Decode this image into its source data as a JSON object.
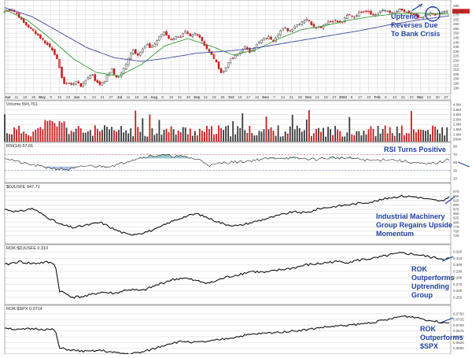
{
  "colors": {
    "up": "#3a3a3a",
    "down": "#cc1a1a",
    "ma_short": "#2c9a2c",
    "ma_long": "#3b3f9c",
    "line": "#111111",
    "annotation": "#1f3fa3",
    "rsi_fill": "#4a9a9a",
    "rsi_fill_low": "#6a8cc8"
  },
  "chart_data": [
    {
      "type": "candlestick",
      "panel": "price",
      "x_tick_labels": [
        "Apr",
        "11",
        "18",
        "25",
        "May",
        "9",
        "16",
        "23",
        "Jun",
        "6",
        "13",
        "21",
        "27",
        "Jul",
        "11",
        "18",
        "25",
        "Aug",
        "8",
        "15",
        "22",
        "29",
        "Sep",
        "12",
        "19",
        "26",
        "Oct",
        "10",
        "17",
        "24",
        "Nov",
        "7",
        "14",
        "21",
        "28",
        "Dec",
        "12",
        "19",
        "27",
        "2023",
        "9",
        "17",
        "23",
        "Feb",
        "6",
        "13",
        "21",
        "27",
        "Mar",
        "13",
        "20",
        "27"
      ],
      "y_tick_labels": [
        "280",
        "275",
        "270",
        "265",
        "260",
        "255",
        "250",
        "245",
        "240",
        "235",
        "230",
        "225",
        "220",
        "215",
        "210",
        "205",
        "200",
        "195",
        "190"
      ],
      "ylim": [
        188,
        282
      ],
      "close_path": [
        [
          0,
          274
        ],
        [
          8,
          276
        ],
        [
          14,
          270
        ],
        [
          20,
          262
        ],
        [
          28,
          255
        ],
        [
          34,
          250
        ],
        [
          40,
          244
        ],
        [
          46,
          238
        ],
        [
          52,
          232
        ],
        [
          56,
          225
        ],
        [
          58,
          218
        ],
        [
          60,
          210
        ],
        [
          63,
          200
        ],
        [
          66,
          192
        ],
        [
          70,
          196
        ],
        [
          74,
          193
        ],
        [
          79,
          198
        ],
        [
          84,
          191
        ],
        [
          90,
          201
        ],
        [
          96,
          205
        ],
        [
          100,
          196
        ],
        [
          104,
          194
        ],
        [
          110,
          199
        ],
        [
          113,
          206
        ],
        [
          117,
          210
        ],
        [
          120,
          204
        ],
        [
          124,
          201
        ],
        [
          129,
          209
        ],
        [
          133,
          216
        ],
        [
          136,
          226
        ],
        [
          140,
          232
        ],
        [
          145,
          226
        ],
        [
          149,
          230
        ],
        [
          155,
          238
        ],
        [
          158,
          234
        ],
        [
          163,
          237
        ],
        [
          170,
          247
        ],
        [
          174,
          252
        ],
        [
          179,
          245
        ],
        [
          182,
          242
        ],
        [
          187,
          247
        ],
        [
          192,
          244
        ],
        [
          197,
          252
        ],
        [
          202,
          246
        ],
        [
          209,
          250
        ],
        [
          214,
          245
        ],
        [
          219,
          236
        ],
        [
          224,
          229
        ],
        [
          229,
          222
        ],
        [
          234,
          212
        ],
        [
          237,
          206
        ],
        [
          241,
          210
        ],
        [
          245,
          220
        ],
        [
          250,
          223
        ],
        [
          257,
          229
        ],
        [
          262,
          235
        ],
        [
          268,
          229
        ],
        [
          274,
          236
        ],
        [
          282,
          243
        ],
        [
          288,
          246
        ],
        [
          294,
          242
        ],
        [
          301,
          252
        ],
        [
          306,
          256
        ],
        [
          311,
          252
        ],
        [
          318,
          258
        ],
        [
          324,
          262
        ],
        [
          330,
          266
        ],
        [
          337,
          258
        ],
        [
          345,
          256
        ],
        [
          352,
          262
        ],
        [
          360,
          264
        ],
        [
          368,
          261
        ],
        [
          375,
          270
        ],
        [
          382,
          268
        ],
        [
          390,
          274
        ],
        [
          396,
          275
        ],
        [
          404,
          269
        ],
        [
          410,
          274
        ],
        [
          418,
          275
        ],
        [
          425,
          271
        ],
        [
          432,
          276
        ],
        [
          440,
          272
        ],
        [
          448,
          270
        ],
        [
          454,
          265
        ],
        [
          458,
          268
        ],
        [
          466,
          272
        ],
        [
          472,
          270
        ],
        [
          480,
          274
        ],
        [
          486,
          273
        ]
      ],
      "ma_short": [
        [
          0,
          276
        ],
        [
          25,
          264
        ],
        [
          50,
          244
        ],
        [
          75,
          222
        ],
        [
          100,
          207
        ],
        [
          125,
          203
        ],
        [
          150,
          216
        ],
        [
          175,
          236
        ],
        [
          200,
          244
        ],
        [
          225,
          236
        ],
        [
          250,
          226
        ],
        [
          275,
          232
        ],
        [
          300,
          244
        ],
        [
          325,
          254
        ],
        [
          350,
          258
        ],
        [
          375,
          264
        ],
        [
          400,
          268
        ],
        [
          425,
          271
        ],
        [
          450,
          272
        ],
        [
          486,
          271
        ]
      ],
      "ma_long": [
        [
          0,
          278
        ],
        [
          30,
          268
        ],
        [
          60,
          251
        ],
        [
          90,
          234
        ],
        [
          120,
          223
        ],
        [
          150,
          219
        ],
        [
          180,
          223
        ],
        [
          210,
          228
        ],
        [
          240,
          230
        ],
        [
          270,
          233
        ],
        [
          300,
          238
        ],
        [
          330,
          243
        ],
        [
          360,
          248
        ],
        [
          390,
          253
        ],
        [
          420,
          259
        ],
        [
          450,
          264
        ],
        [
          486,
          269
        ]
      ],
      "volume_max": 4.0,
      "volume_ticks": [
        "4.0M",
        "3.5M",
        "3.0M",
        "2.5M",
        "2.0M",
        "1.5M",
        "1.0M",
        "500K"
      ],
      "last_close_label": "274.08"
    },
    {
      "type": "line",
      "panel": "rsi",
      "series_label": "RSI(14) 57.01",
      "ylim": [
        10,
        90
      ],
      "y_tick_labels": [
        "90",
        "70",
        "50",
        "30",
        "10"
      ],
      "values": [
        [
          0,
          62
        ],
        [
          20,
          48
        ],
        [
          40,
          40
        ],
        [
          55,
          35
        ],
        [
          70,
          32
        ],
        [
          90,
          42
        ],
        [
          110,
          40
        ],
        [
          125,
          45
        ],
        [
          140,
          58
        ],
        [
          155,
          65
        ],
        [
          170,
          68
        ],
        [
          185,
          66
        ],
        [
          200,
          63
        ],
        [
          215,
          55
        ],
        [
          225,
          42
        ],
        [
          240,
          50
        ],
        [
          260,
          52
        ],
        [
          280,
          58
        ],
        [
          300,
          62
        ],
        [
          320,
          60
        ],
        [
          340,
          58
        ],
        [
          360,
          62
        ],
        [
          380,
          60
        ],
        [
          400,
          55
        ],
        [
          420,
          58
        ],
        [
          440,
          52
        ],
        [
          460,
          45
        ],
        [
          475,
          50
        ],
        [
          486,
          57
        ]
      ]
    },
    {
      "type": "line",
      "panel": "dj_industrial_machinery",
      "series_label": "$DJUSFE 947.71",
      "ylim": [
        700,
        1000
      ],
      "y_tick_labels": [
        "975",
        "950",
        "925",
        "900",
        "875",
        "850",
        "825",
        "800",
        "775",
        "750",
        "725"
      ],
      "values": [
        [
          0,
          875
        ],
        [
          15,
          860
        ],
        [
          30,
          880
        ],
        [
          45,
          835
        ],
        [
          60,
          790
        ],
        [
          75,
          770
        ],
        [
          90,
          785
        ],
        [
          105,
          800
        ],
        [
          120,
          760
        ],
        [
          135,
          730
        ],
        [
          150,
          740
        ],
        [
          165,
          760
        ],
        [
          180,
          800
        ],
        [
          195,
          830
        ],
        [
          210,
          850
        ],
        [
          225,
          820
        ],
        [
          240,
          790
        ],
        [
          255,
          780
        ],
        [
          270,
          800
        ],
        [
          285,
          820
        ],
        [
          300,
          840
        ],
        [
          315,
          860
        ],
        [
          330,
          855
        ],
        [
          345,
          880
        ],
        [
          360,
          890
        ],
        [
          375,
          900
        ],
        [
          390,
          910
        ],
        [
          405,
          920
        ],
        [
          420,
          940
        ],
        [
          435,
          950
        ],
        [
          450,
          945
        ],
        [
          465,
          930
        ],
        [
          480,
          920
        ],
        [
          486,
          947
        ]
      ]
    },
    {
      "type": "line",
      "panel": "rok_vs_djusfe",
      "series_label": "ROK:$DJUSFE 0.310",
      "ylim": [
        0.245,
        0.325
      ],
      "y_tick_labels": [
        "0.320",
        "0.310",
        "0.300",
        "0.290",
        "0.280",
        "0.270",
        "0.260",
        "0.250"
      ],
      "values": [
        [
          0,
          0.3
        ],
        [
          15,
          0.305
        ],
        [
          30,
          0.302
        ],
        [
          45,
          0.304
        ],
        [
          55,
          0.302
        ],
        [
          60,
          0.26
        ],
        [
          75,
          0.25
        ],
        [
          90,
          0.252
        ],
        [
          105,
          0.258
        ],
        [
          120,
          0.256
        ],
        [
          135,
          0.262
        ],
        [
          150,
          0.26
        ],
        [
          165,
          0.268
        ],
        [
          180,
          0.276
        ],
        [
          195,
          0.28
        ],
        [
          210,
          0.275
        ],
        [
          225,
          0.272
        ],
        [
          240,
          0.28
        ],
        [
          255,
          0.285
        ],
        [
          270,
          0.29
        ],
        [
          285,
          0.288
        ],
        [
          300,
          0.292
        ],
        [
          315,
          0.295
        ],
        [
          330,
          0.3
        ],
        [
          345,
          0.302
        ],
        [
          360,
          0.305
        ],
        [
          375,
          0.304
        ],
        [
          390,
          0.308
        ],
        [
          405,
          0.31
        ],
        [
          420,
          0.315
        ],
        [
          435,
          0.318
        ],
        [
          450,
          0.316
        ],
        [
          465,
          0.312
        ],
        [
          480,
          0.309
        ],
        [
          486,
          0.31
        ]
      ]
    },
    {
      "type": "line",
      "panel": "rok_vs_spx",
      "series_label": "ROK:$SPX 0.0714",
      "ylim": [
        0.055,
        0.077
      ],
      "y_tick_labels": [
        "0.0750",
        "0.0725",
        "0.0700",
        "0.0675",
        "0.0650",
        "0.0625",
        "0.0600",
        "0.0575"
      ],
      "values": [
        [
          0,
          0.069
        ],
        [
          15,
          0.068
        ],
        [
          30,
          0.0685
        ],
        [
          45,
          0.0682
        ],
        [
          55,
          0.068
        ],
        [
          60,
          0.06
        ],
        [
          75,
          0.059
        ],
        [
          90,
          0.0585
        ],
        [
          105,
          0.059
        ],
        [
          120,
          0.058
        ],
        [
          135,
          0.0575
        ],
        [
          150,
          0.0582
        ],
        [
          165,
          0.06
        ],
        [
          180,
          0.062
        ],
        [
          195,
          0.063
        ],
        [
          210,
          0.0625
        ],
        [
          225,
          0.063
        ],
        [
          240,
          0.064
        ],
        [
          255,
          0.065
        ],
        [
          270,
          0.066
        ],
        [
          285,
          0.0665
        ],
        [
          300,
          0.067
        ],
        [
          315,
          0.0675
        ],
        [
          330,
          0.068
        ],
        [
          345,
          0.069
        ],
        [
          360,
          0.0695
        ],
        [
          375,
          0.07
        ],
        [
          390,
          0.0705
        ],
        [
          405,
          0.0715
        ],
        [
          420,
          0.0725
        ],
        [
          435,
          0.074
        ],
        [
          450,
          0.0735
        ],
        [
          465,
          0.072
        ],
        [
          480,
          0.0712
        ],
        [
          486,
          0.0714
        ]
      ]
    }
  ],
  "annotations": {
    "uptrend": [
      "Uptrend",
      "Reverses Due",
      "To Bank Crisis"
    ],
    "rsi": "RSI Turns Positive",
    "industrial": [
      "Industrial Machinery",
      "Group Regains Upside",
      "Momentum"
    ],
    "rok_group": [
      "ROK",
      "Outperforms",
      "Uptrending",
      "Group"
    ],
    "rok_spx": [
      "ROK",
      "Outperforms",
      "$SPX"
    ]
  },
  "panel_labels": {
    "volume": "Volume 594,761"
  }
}
